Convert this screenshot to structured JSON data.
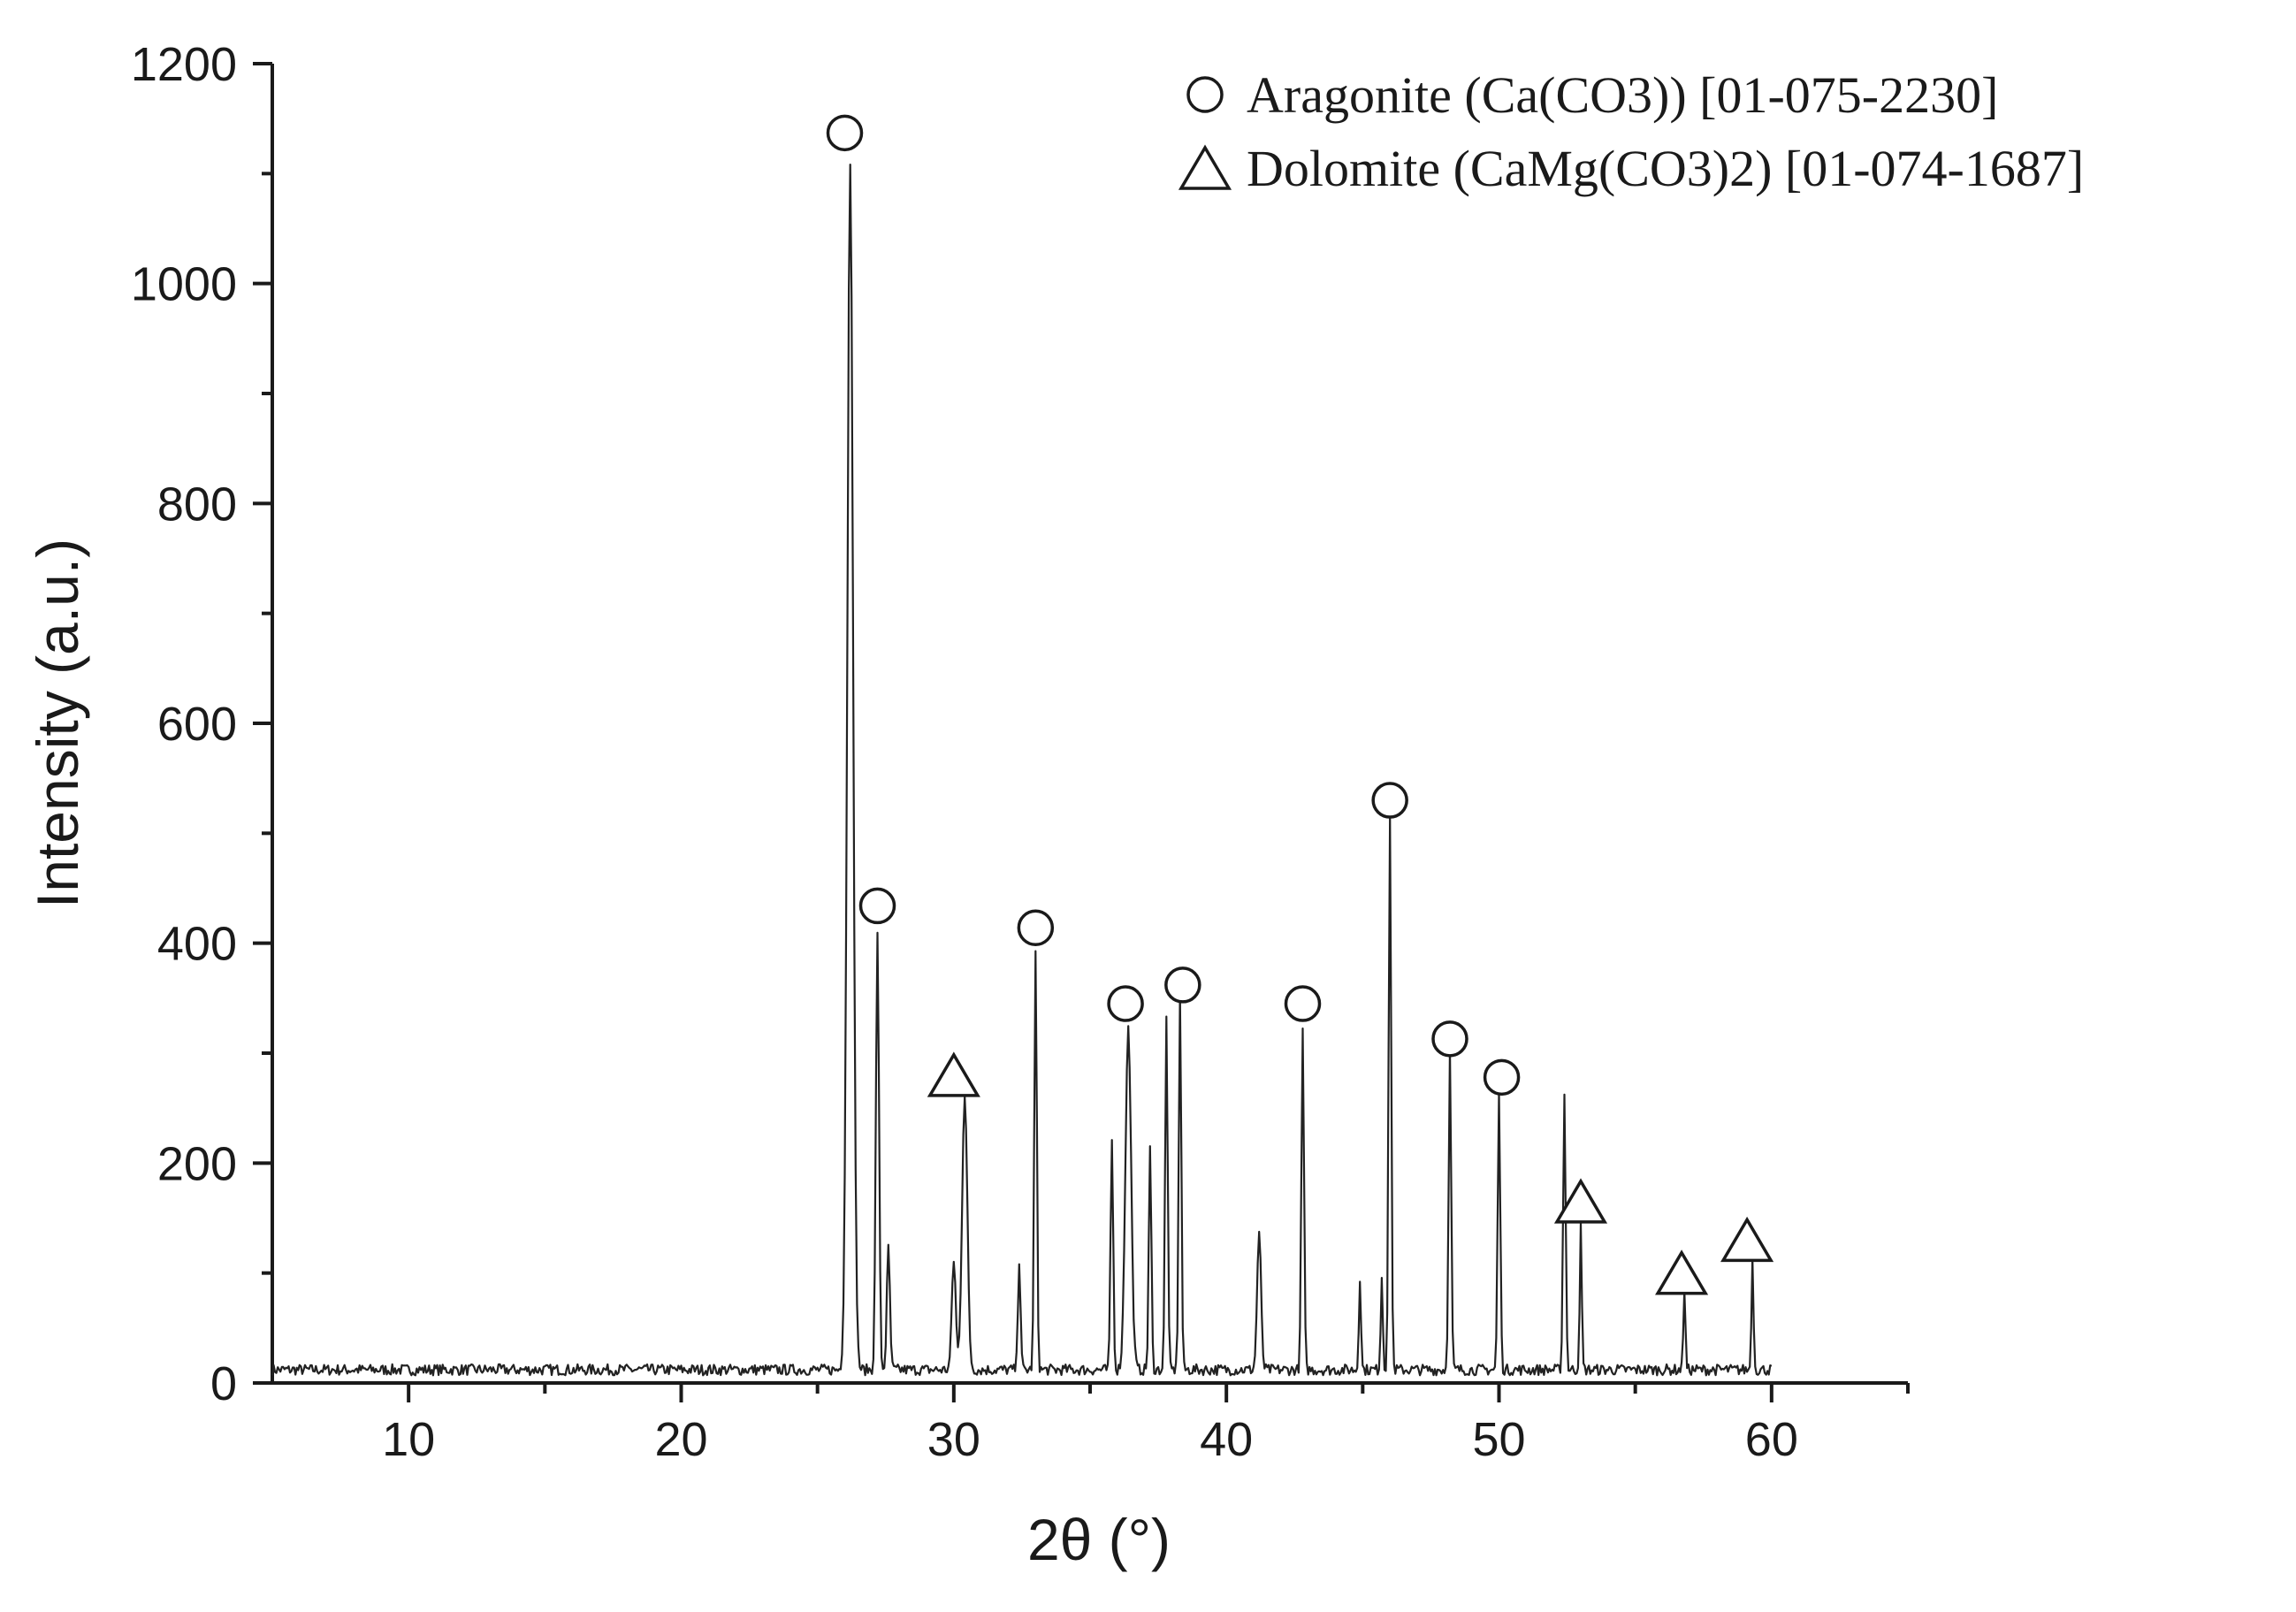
{
  "chart_data": {
    "type": "line",
    "xlabel": "2θ (°)",
    "ylabel": "Intensity (a.u.)",
    "xlim": [
      5,
      65
    ],
    "ylim": [
      0,
      1200
    ],
    "x_ticks": [
      10,
      20,
      30,
      40,
      50,
      60
    ],
    "y_ticks": [
      0,
      200,
      400,
      600,
      800,
      1000,
      1200
    ],
    "grid": false,
    "legend_position": "top-right",
    "legend": [
      {
        "marker": "circle",
        "label": "Aragonite (Ca(CO3)) [01-075-2230]"
      },
      {
        "marker": "triangle",
        "label": "Dolomite (CaMg(CO3)2) [01-074-1687]"
      }
    ],
    "baseline": 12,
    "peaks": [
      {
        "x": 26.2,
        "y": 1100,
        "w": 0.22
      },
      {
        "x": 27.2,
        "y": 400,
        "w": 0.12
      },
      {
        "x": 27.6,
        "y": 110,
        "w": 0.12
      },
      {
        "x": 30.4,
        "y": 250,
        "w": 0.2
      },
      {
        "x": 30.0,
        "y": 100,
        "w": 0.15
      },
      {
        "x": 32.4,
        "y": 100,
        "w": 0.1
      },
      {
        "x": 33.0,
        "y": 380,
        "w": 0.1
      },
      {
        "x": 35.8,
        "y": 210,
        "w": 0.1
      },
      {
        "x": 36.4,
        "y": 310,
        "w": 0.22
      },
      {
        "x": 37.2,
        "y": 200,
        "w": 0.1
      },
      {
        "x": 37.8,
        "y": 320,
        "w": 0.1
      },
      {
        "x": 38.3,
        "y": 340,
        "w": 0.1
      },
      {
        "x": 41.2,
        "y": 125,
        "w": 0.15
      },
      {
        "x": 42.8,
        "y": 310,
        "w": 0.1
      },
      {
        "x": 44.9,
        "y": 85,
        "w": 0.08
      },
      {
        "x": 45.7,
        "y": 85,
        "w": 0.08
      },
      {
        "x": 46.0,
        "y": 500,
        "w": 0.1
      },
      {
        "x": 48.2,
        "y": 290,
        "w": 0.1
      },
      {
        "x": 50.0,
        "y": 250,
        "w": 0.1
      },
      {
        "x": 52.4,
        "y": 250,
        "w": 0.1
      },
      {
        "x": 53.0,
        "y": 130,
        "w": 0.08
      },
      {
        "x": 56.8,
        "y": 75,
        "w": 0.08
      },
      {
        "x": 59.3,
        "y": 100,
        "w": 0.08
      }
    ],
    "phase_markers": [
      {
        "phase": "Aragonite",
        "marker": "circle",
        "x": 26.0,
        "y": 1137
      },
      {
        "phase": "Aragonite",
        "marker": "circle",
        "x": 27.2,
        "y": 434
      },
      {
        "phase": "Dolomite",
        "marker": "triangle",
        "x": 30.0,
        "y": 280
      },
      {
        "phase": "Aragonite",
        "marker": "circle",
        "x": 33.0,
        "y": 414
      },
      {
        "phase": "Aragonite",
        "marker": "circle",
        "x": 36.3,
        "y": 345
      },
      {
        "phase": "Aragonite",
        "marker": "circle",
        "x": 38.4,
        "y": 362
      },
      {
        "phase": "Aragonite",
        "marker": "circle",
        "x": 42.8,
        "y": 345
      },
      {
        "phase": "Aragonite",
        "marker": "circle",
        "x": 46.0,
        "y": 530
      },
      {
        "phase": "Aragonite",
        "marker": "circle",
        "x": 48.2,
        "y": 313
      },
      {
        "phase": "Aragonite",
        "marker": "circle",
        "x": 50.1,
        "y": 278
      },
      {
        "phase": "Dolomite",
        "marker": "triangle",
        "x": 53.0,
        "y": 165
      },
      {
        "phase": "Dolomite",
        "marker": "triangle",
        "x": 56.7,
        "y": 100
      },
      {
        "phase": "Dolomite",
        "marker": "triangle",
        "x": 59.1,
        "y": 130
      }
    ]
  }
}
